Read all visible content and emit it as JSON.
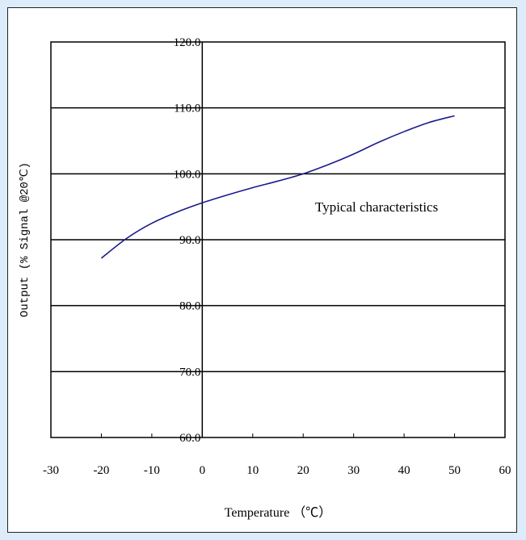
{
  "chart_data": {
    "type": "line",
    "xlabel": "Temperature （℃）",
    "ylabel": "Output (% Signal @20℃)",
    "annotation": "Typical characteristics",
    "xlim": [
      -30,
      60
    ],
    "ylim": [
      60,
      120
    ],
    "x_ticks": [
      "-30",
      "-20",
      "-10",
      "0",
      "10",
      "20",
      "30",
      "40",
      "50",
      "60"
    ],
    "y_ticks": [
      "60.0",
      "70.0",
      "80.0",
      "90.0",
      "100.0",
      "110.0",
      "120.0"
    ],
    "grid": "horizontal",
    "colors": {
      "line": "#1a1a8c",
      "grid": "#000000"
    },
    "series": [
      {
        "x": [
          -20,
          -15,
          -10,
          -5,
          0,
          5,
          10,
          15,
          20,
          25,
          30,
          35,
          40,
          45,
          50
        ],
        "y": [
          87.2,
          90.2,
          92.5,
          94.2,
          95.6,
          96.8,
          97.9,
          98.9,
          100.0,
          101.4,
          103.0,
          104.8,
          106.4,
          107.8,
          108.8
        ]
      }
    ]
  }
}
